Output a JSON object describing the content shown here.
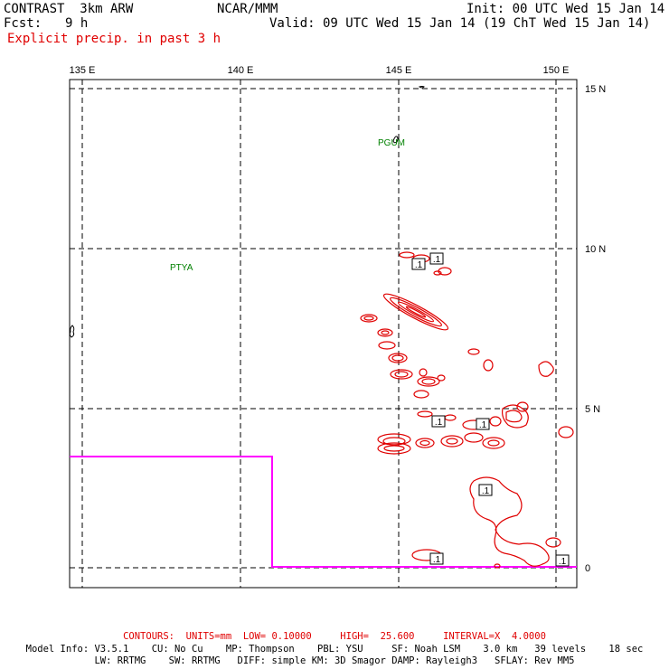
{
  "header": {
    "model_name": "CONTRAST  3km ARW",
    "org": "NCAR/MMM",
    "init": "Init: 00 UTC Wed 15 Jan 14",
    "fcst_label": "Fcst:",
    "fcst_value": "9 h",
    "valid": "Valid: 09 UTC Wed 15 Jan 14 (19 ChT Wed 15 Jan 14)",
    "field": "Explicit precip. in past 3 h"
  },
  "axes": {
    "lon_labels": [
      "135 E",
      "140 E",
      "145 E",
      "150 E"
    ],
    "lat_labels": [
      "15 N",
      "10 N",
      "5 N",
      "0"
    ]
  },
  "stations": [
    {
      "id": "PGUM",
      "lon": 144.8,
      "lat": 13.5
    },
    {
      "id": "PTYA",
      "lon": 138.1,
      "lat": 9.5
    }
  ],
  "contour_labels": [
    ".1",
    ".1",
    ".1",
    ".1",
    ".1",
    ".1",
    ".1"
  ],
  "colors": {
    "contour": "#e00000",
    "domain_box": "#ff00ff",
    "station": "#008000",
    "grid": "#000000"
  },
  "footer": {
    "contours": "CONTOURS:  UNITS=mm  LOW= 0.10000     HIGH=  25.600     INTERVAL=X  4.0000",
    "model_info_1": "Model Info: V3.5.1    CU: No Cu    MP: Thompson    PBL: YSU     SF: Noah LSM    3.0 km   39 levels    18 sec",
    "model_info_2": "LW: RRTMG    SW: RRTMG   DIFF: simple KM: 3D Smagor DAMP: Rayleigh3   SFLAY: Rev MM5"
  }
}
